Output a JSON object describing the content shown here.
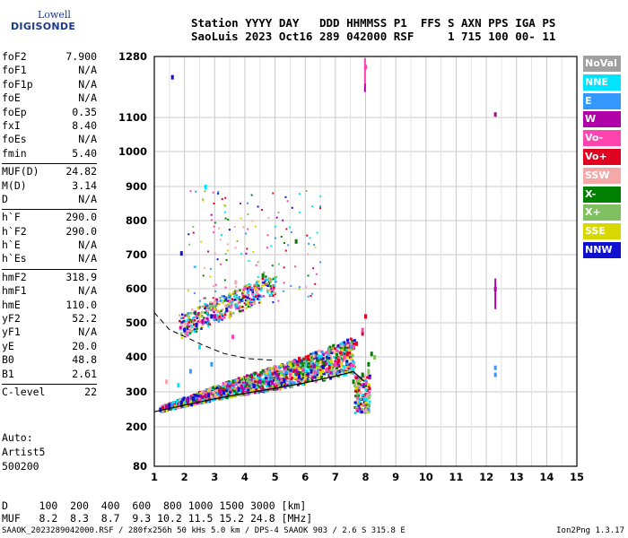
{
  "logo": {
    "line1": "Lowell",
    "line2": "DIGISONDE"
  },
  "header": {
    "line1": "Station YYYY DAY   DDD HHMMSS P1  FFS S AXN PPS IGA PS",
    "line2": "SaoLuis 2023 Oct16 289 042000 RSF     1 715 100 00- 11"
  },
  "params_groups": [
    [
      [
        "foF2",
        "7.900"
      ],
      [
        "foF1",
        "N/A"
      ],
      [
        "foF1p",
        "N/A"
      ],
      [
        "foE",
        "N/A"
      ],
      [
        "foEp",
        "0.35"
      ],
      [
        "fxI",
        "8.40"
      ],
      [
        "foEs",
        "N/A"
      ],
      [
        "fmin",
        "5.40"
      ]
    ],
    [
      [
        "MUF(D)",
        "24.82"
      ],
      [
        "M(D)",
        "3.14"
      ],
      [
        "D",
        "N/A"
      ]
    ],
    [
      [
        "h`F",
        "290.0"
      ],
      [
        "h`F2",
        "290.0"
      ],
      [
        "h`E",
        "N/A"
      ],
      [
        "h`Es",
        "N/A"
      ]
    ],
    [
      [
        "hmF2",
        "318.9"
      ],
      [
        "hmF1",
        "N/A"
      ],
      [
        "hmE",
        "110.0"
      ],
      [
        "yF2",
        "52.2"
      ],
      [
        "yF1",
        "N/A"
      ],
      [
        "yE",
        "20.0"
      ],
      [
        "B0",
        "48.8"
      ],
      [
        "B1",
        "2.61"
      ]
    ],
    [
      [
        "C-level",
        "22"
      ]
    ]
  ],
  "auto": {
    "line1": "Auto:",
    "line2": "Artist5",
    "line3": "500200"
  },
  "muf_table": {
    "line1": "D     100  200  400  600  800 1000 1500 3000 [km]",
    "line2": "MUF   8.2  8.3  8.7  9.3 10.2 11.5 15.2 24.8 [MHz]"
  },
  "footer": {
    "left": "SAAOK_2023289042000.RSF / 280fx256h 50 kHs 5.0 km / DPS-4 SAAOK 903 / 2.6 S 315.8 E",
    "right": "Ion2Png 1.3.17"
  },
  "legend": [
    {
      "label": "NoVal",
      "color": "#a0a0a0"
    },
    {
      "label": "NNE",
      "color": "#00e5ff"
    },
    {
      "label": "E",
      "color": "#3399ff"
    },
    {
      "label": "W",
      "color": "#b000a8"
    },
    {
      "label": "Vo-",
      "color": "#ff44b0"
    },
    {
      "label": "Vo+",
      "color": "#e00020"
    },
    {
      "label": "SSW",
      "color": "#f4a8a8"
    },
    {
      "label": "X-",
      "color": "#007f00"
    },
    {
      "label": "X+",
      "color": "#80c060"
    },
    {
      "label": "SSE",
      "color": "#d8d800"
    },
    {
      "label": "NNW",
      "color": "#1010d0"
    }
  ],
  "chart_data": {
    "type": "scatter",
    "title": "",
    "xlabel": "",
    "ylabel": "",
    "xlim": [
      1,
      15
    ],
    "ylim": [
      80,
      1280
    ],
    "x_ticks": [
      1,
      2,
      3,
      4,
      5,
      6,
      7,
      8,
      9,
      10,
      11,
      12,
      13,
      14,
      15
    ],
    "y_ticks": [
      80,
      200,
      300,
      400,
      500,
      600,
      700,
      800,
      900,
      1000,
      1100,
      1280
    ],
    "y_scale": "nonlinear (virtual height, km)",
    "grid": true,
    "legend_position": "right",
    "series": [
      {
        "name": "NNW",
        "color": "#1010d0",
        "points": [
          [
            1.2,
            250
          ],
          [
            1.5,
            262
          ],
          [
            1.9,
            270
          ],
          [
            2.3,
            282
          ],
          [
            2.8,
            292
          ],
          [
            3.3,
            300
          ],
          [
            3.8,
            308
          ],
          [
            4.3,
            318
          ],
          [
            4.8,
            325
          ],
          [
            5.3,
            333
          ],
          [
            5.8,
            345
          ],
          [
            6.2,
            360
          ],
          [
            6.6,
            372
          ],
          [
            2.0,
            480
          ],
          [
            2.4,
            495
          ],
          [
            2.9,
            520
          ],
          [
            3.4,
            540
          ],
          [
            1.6,
            1220
          ],
          [
            1.9,
            705
          ]
        ]
      },
      {
        "name": "W",
        "color": "#b000a8",
        "points": [
          [
            1.4,
            258
          ],
          [
            2.1,
            278
          ],
          [
            2.7,
            290
          ],
          [
            3.2,
            305
          ],
          [
            3.9,
            315
          ],
          [
            4.5,
            330
          ],
          [
            5.1,
            345
          ],
          [
            5.7,
            360
          ],
          [
            6.3,
            375
          ],
          [
            7.0,
            385
          ],
          [
            2.6,
            505
          ],
          [
            3.0,
            520
          ],
          [
            12.3,
            1110
          ],
          [
            12.3,
            600
          ]
        ]
      },
      {
        "name": "Vo+",
        "color": "#e00020",
        "points": [
          [
            6.5,
            360
          ],
          [
            6.8,
            372
          ],
          [
            7.1,
            390
          ],
          [
            7.4,
            410
          ],
          [
            7.7,
            440
          ],
          [
            7.9,
            470
          ],
          [
            8.0,
            520
          ],
          [
            5.8,
            395
          ],
          [
            6.1,
            400
          ]
        ]
      },
      {
        "name": "Vo-",
        "color": "#ff44b0",
        "points": [
          [
            6.7,
            365
          ],
          [
            7.0,
            380
          ],
          [
            7.3,
            400
          ],
          [
            7.6,
            430
          ],
          [
            7.9,
            480
          ],
          [
            8.0,
            1250
          ],
          [
            5.5,
            350
          ],
          [
            3.6,
            460
          ]
        ]
      },
      {
        "name": "X-",
        "color": "#007f00",
        "points": [
          [
            7.6,
            330
          ],
          [
            7.9,
            350
          ],
          [
            8.1,
            380
          ],
          [
            8.2,
            410
          ],
          [
            5.7,
            740
          ],
          [
            4.6,
            640
          ]
        ]
      },
      {
        "name": "X+",
        "color": "#80c060",
        "points": [
          [
            7.8,
            340
          ],
          [
            8.1,
            360
          ],
          [
            8.3,
            400
          ],
          [
            6.8,
            420
          ]
        ]
      },
      {
        "name": "SSE",
        "color": "#d8d800",
        "points": [
          [
            6.0,
            340
          ],
          [
            6.5,
            355
          ],
          [
            7.2,
            380
          ],
          [
            3.5,
            520
          ],
          [
            4.1,
            560
          ]
        ]
      },
      {
        "name": "NNE",
        "color": "#00e5ff",
        "points": [
          [
            2.7,
            900
          ],
          [
            2.5,
            430
          ],
          [
            1.8,
            320
          ]
        ]
      },
      {
        "name": "E",
        "color": "#3399ff",
        "points": [
          [
            2.2,
            360
          ],
          [
            2.9,
            380
          ],
          [
            12.3,
            370
          ],
          [
            12.3,
            350
          ]
        ]
      },
      {
        "name": "SSW",
        "color": "#f4a8a8",
        "points": [
          [
            3.0,
            560
          ],
          [
            3.7,
            620
          ],
          [
            4.4,
            590
          ],
          [
            1.4,
            330
          ]
        ]
      }
    ],
    "profile_curve": [
      [
        1.0,
        243
      ],
      [
        2.0,
        262
      ],
      [
        3.0,
        280
      ],
      [
        4.0,
        296
      ],
      [
        5.0,
        310
      ],
      [
        6.0,
        326
      ],
      [
        7.0,
        345
      ],
      [
        7.6,
        358
      ],
      [
        7.95,
        330
      ]
    ],
    "dashed_curve": [
      [
        1.0,
        530
      ],
      [
        1.5,
        480
      ],
      [
        2.0,
        460
      ],
      [
        2.6,
        435
      ],
      [
        3.3,
        410
      ],
      [
        4.1,
        395
      ],
      [
        5.0,
        390
      ]
    ]
  }
}
